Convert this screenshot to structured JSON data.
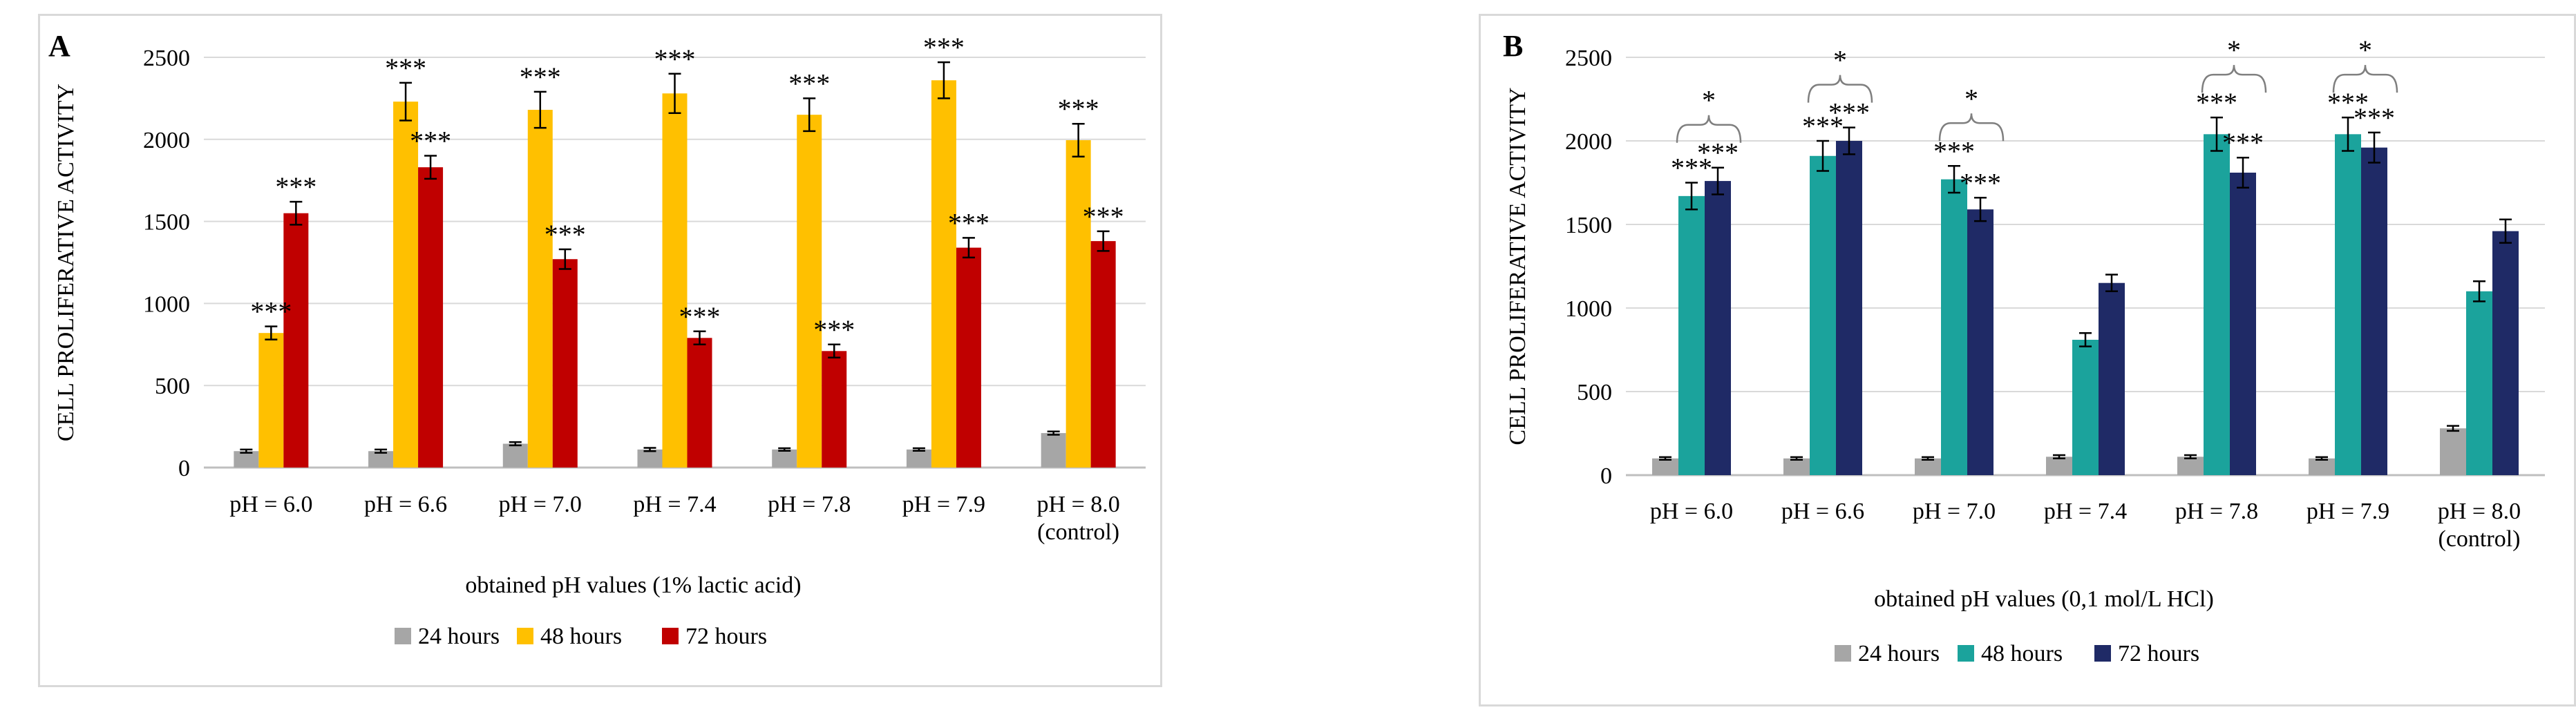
{
  "colors": {
    "grid": "#d9d9d9",
    "axis": "#bfbfbf",
    "series_24h": "#a6a6a6",
    "series_48h_a": "#ffc000",
    "series_72h_a": "#c00000",
    "series_48h_b": "#1ba39c",
    "series_72h_b": "#1f2a66"
  },
  "chart_data": [
    {
      "panel_label": "A",
      "type": "bar",
      "ylabel": "CELL PROLIFERATIVE ACTIVITY",
      "xlabel": "obtained pH values (1% lactic acid)",
      "ylim": [
        0,
        2500
      ],
      "yticks": [
        "0",
        "500",
        "1000",
        "1500",
        "2000",
        "2500"
      ],
      "categories": [
        [
          "pH = 6.0"
        ],
        [
          "pH = 6.6"
        ],
        [
          "pH = 7.0"
        ],
        [
          "pH = 7.4"
        ],
        [
          "pH = 7.8"
        ],
        [
          "pH = 7.9"
        ],
        [
          "pH = 8.0",
          "(control)"
        ]
      ],
      "grid": true,
      "legend_position": "bottom",
      "series": [
        {
          "name": "24 hours",
          "color": "#a6a6a6",
          "values": [
            100,
            100,
            145,
            110,
            110,
            110,
            210
          ],
          "errors": [
            10,
            10,
            10,
            10,
            8,
            8,
            10
          ]
        },
        {
          "name": "48 hours",
          "color": "#ffc000",
          "values": [
            820,
            2230,
            2180,
            2280,
            2150,
            2360,
            1995
          ],
          "errors": [
            40,
            115,
            110,
            120,
            100,
            110,
            100
          ]
        },
        {
          "name": "72 hours",
          "color": "#c00000",
          "values": [
            1550,
            1830,
            1270,
            790,
            710,
            1340,
            1380
          ],
          "errors": [
            70,
            70,
            60,
            40,
            40,
            60,
            60
          ]
        }
      ],
      "annotations": [
        {
          "series": 1,
          "index": 0,
          "text": "***"
        },
        {
          "series": 2,
          "index": 0,
          "text": "***"
        },
        {
          "series": 1,
          "index": 1,
          "text": "***"
        },
        {
          "series": 2,
          "index": 1,
          "text": "***"
        },
        {
          "series": 1,
          "index": 2,
          "text": "***"
        },
        {
          "series": 2,
          "index": 2,
          "text": "***"
        },
        {
          "series": 1,
          "index": 3,
          "text": "***"
        },
        {
          "series": 2,
          "index": 3,
          "text": "***"
        },
        {
          "series": 1,
          "index": 4,
          "text": "***"
        },
        {
          "series": 2,
          "index": 4,
          "text": "***"
        },
        {
          "series": 1,
          "index": 5,
          "text": "***"
        },
        {
          "series": 2,
          "index": 5,
          "text": "***"
        },
        {
          "series": 1,
          "index": 6,
          "text": "***"
        },
        {
          "series": 2,
          "index": 6,
          "text": "***"
        }
      ],
      "brackets": []
    },
    {
      "panel_label": "B",
      "type": "bar",
      "ylabel": "CELL PROLIFERATIVE ACTIVITY",
      "xlabel": "obtained pH values (0,1 mol/L HCl)",
      "ylim": [
        0,
        2500
      ],
      "yticks": [
        "0",
        "500",
        "1000",
        "1500",
        "2000",
        "2500"
      ],
      "categories": [
        [
          "pH = 6.0"
        ],
        [
          "pH = 6.6"
        ],
        [
          "pH = 7.0"
        ],
        [
          "pH = 7.4"
        ],
        [
          "pH = 7.8"
        ],
        [
          "pH = 7.9"
        ],
        [
          "pH = 8.0",
          "(control)"
        ]
      ],
      "grid": true,
      "legend_position": "bottom",
      "series": [
        {
          "name": "24 hours",
          "color": "#a6a6a6",
          "values": [
            100,
            100,
            100,
            110,
            110,
            100,
            280
          ],
          "errors": [
            8,
            8,
            8,
            10,
            10,
            8,
            15
          ]
        },
        {
          "name": "48 hours",
          "color": "#1ba39c",
          "values": [
            1670,
            1910,
            1770,
            810,
            2040,
            2040,
            1100
          ],
          "errors": [
            80,
            90,
            80,
            40,
            100,
            100,
            60
          ]
        },
        {
          "name": "72 hours",
          "color": "#1f2a66",
          "values": [
            1760,
            2000,
            1590,
            1150,
            1810,
            1960,
            1460
          ],
          "errors": [
            80,
            80,
            70,
            50,
            90,
            90,
            70
          ]
        }
      ],
      "annotations": [
        {
          "series": 1,
          "index": 0,
          "text": "***"
        },
        {
          "series": 2,
          "index": 0,
          "text": "***"
        },
        {
          "series": 1,
          "index": 1,
          "text": "***"
        },
        {
          "series": 2,
          "index": 1,
          "text": "***"
        },
        {
          "series": 1,
          "index": 2,
          "text": "***"
        },
        {
          "series": 2,
          "index": 2,
          "text": "***"
        },
        {
          "series": 1,
          "index": 4,
          "text": "***"
        },
        {
          "series": 2,
          "index": 4,
          "text": "***"
        },
        {
          "series": 1,
          "index": 5,
          "text": "***"
        },
        {
          "series": 2,
          "index": 5,
          "text": "***"
        }
      ],
      "brackets": [
        {
          "index": 0,
          "text": "*"
        },
        {
          "index": 1,
          "text": "*"
        },
        {
          "index": 2,
          "text": "*"
        },
        {
          "index": 4,
          "text": "*"
        },
        {
          "index": 5,
          "text": "*"
        }
      ]
    }
  ]
}
